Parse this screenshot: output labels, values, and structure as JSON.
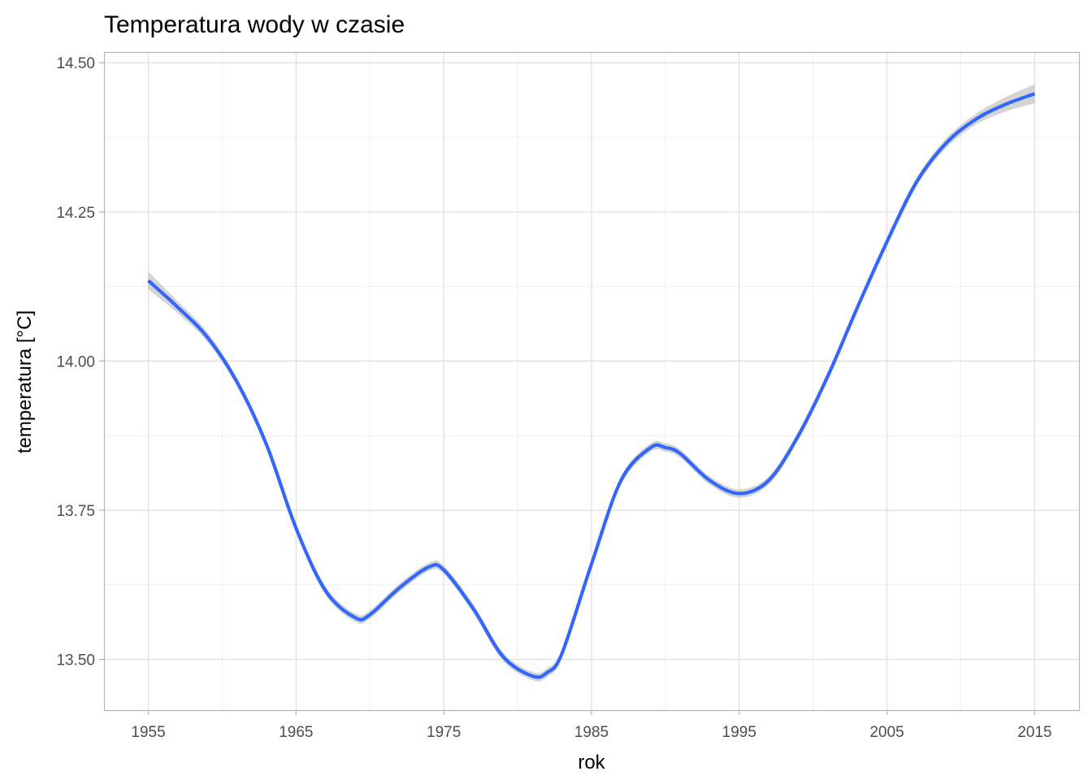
{
  "chart_data": {
    "type": "line",
    "title": "Temperatura wody w czasie",
    "xlabel": "rok",
    "ylabel": "temperatura [°C]",
    "xlim": [
      1952,
      2018
    ],
    "ylim": [
      13.415,
      14.518
    ],
    "x_ticks": [
      1955,
      1965,
      1975,
      1985,
      1995,
      2005,
      2015
    ],
    "x_tick_labels": [
      "1955",
      "1965",
      "1975",
      "1985",
      "1995",
      "2005",
      "2015"
    ],
    "y_ticks": [
      13.5,
      13.75,
      14.0,
      14.25,
      14.5
    ],
    "y_tick_labels": [
      "13.50",
      "13.75",
      "14.00",
      "14.25",
      "14.50"
    ],
    "grid": true,
    "series": [
      {
        "color": "#3366ff",
        "band_color": "#b8b8b8",
        "x": [
          1955,
          1957,
          1959,
          1961,
          1963,
          1965,
          1967,
          1969,
          1970,
          1972,
          1974,
          1975,
          1977,
          1979,
          1981,
          1982,
          1983,
          1985,
          1987,
          1989,
          1990,
          1991,
          1993,
          1995,
          1997,
          1999,
          2001,
          2003,
          2005,
          2007,
          2009,
          2011,
          2013,
          2015
        ],
        "y": [
          14.135,
          14.09,
          14.04,
          13.965,
          13.86,
          13.72,
          13.615,
          13.57,
          13.575,
          13.62,
          13.655,
          13.65,
          13.585,
          13.505,
          13.472,
          13.478,
          13.51,
          13.66,
          13.8,
          13.855,
          13.855,
          13.845,
          13.8,
          13.778,
          13.8,
          13.875,
          13.975,
          14.09,
          14.2,
          14.3,
          14.365,
          14.405,
          14.43,
          14.448
        ],
        "band": [
          0.015,
          0.01,
          0.008,
          0.007,
          0.007,
          0.007,
          0.007,
          0.007,
          0.007,
          0.007,
          0.007,
          0.007,
          0.007,
          0.007,
          0.007,
          0.007,
          0.007,
          0.007,
          0.007,
          0.007,
          0.007,
          0.007,
          0.007,
          0.007,
          0.007,
          0.007,
          0.007,
          0.007,
          0.007,
          0.007,
          0.008,
          0.009,
          0.012,
          0.016
        ]
      }
    ]
  }
}
